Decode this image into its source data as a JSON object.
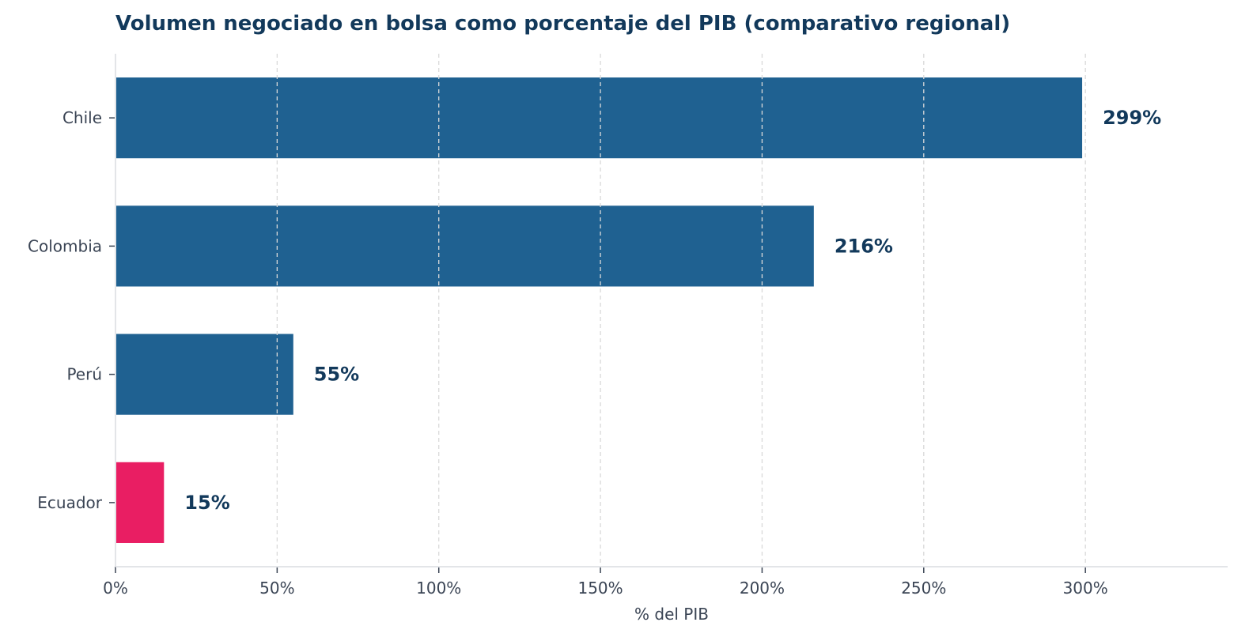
{
  "chart_data": {
    "type": "bar",
    "orientation": "horizontal",
    "title": "Volumen negociado en bolsa como porcentaje del PIB (comparativo regional)",
    "xlabel": "% del PIB",
    "ylabel": "",
    "categories": [
      "Chile",
      "Colombia",
      "Perú",
      "Ecuador"
    ],
    "values": [
      299,
      216,
      55,
      15
    ],
    "value_labels": [
      "299%",
      "216%",
      "55%",
      "15%"
    ],
    "bar_colors": [
      "#1f6191",
      "#1f6191",
      "#1f6191",
      "#e91e63"
    ],
    "xlim": [
      0,
      344
    ],
    "xticks": [
      0,
      50,
      100,
      150,
      200,
      250,
      300
    ],
    "xtick_labels": [
      "0%",
      "50%",
      "100%",
      "150%",
      "200%",
      "250%",
      "300%"
    ],
    "grid": "x dashed",
    "colors": {
      "title": "#12395b",
      "label": "#12395b",
      "axis": "#e3e5e8",
      "grid": "#d9d9d9",
      "tick_text": "#3a4454"
    }
  }
}
